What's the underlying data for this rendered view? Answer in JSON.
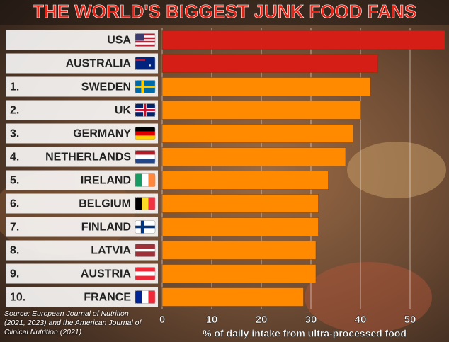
{
  "chart_data": {
    "type": "barh",
    "title": "THE WORLD'S BIGGEST JUNK FOOD FANS",
    "ranks": [
      null,
      null,
      "1.",
      "2.",
      "3.",
      "4.",
      "5.",
      "6.",
      "7.",
      "8.",
      "9.",
      "10."
    ],
    "categories": [
      "USA",
      "AUSTRALIA",
      "SWEDEN",
      "UK",
      "GERMANY",
      "NETHERLANDS",
      "IRELAND",
      "BELGIUM",
      "FINLAND",
      "LATVIA",
      "AUSTRIA",
      "FRANCE"
    ],
    "values": [
      57,
      43.5,
      42,
      40,
      38.5,
      37,
      33.5,
      31.5,
      31.5,
      31,
      31,
      28.5
    ],
    "colors": [
      "#d41e16",
      "#d41e16",
      "#ff8a00",
      "#ff8a00",
      "#ff8a00",
      "#ff8a00",
      "#ff8a00",
      "#ff8a00",
      "#ff8a00",
      "#ff8a00",
      "#ff8a00",
      "#ff8a00"
    ],
    "xlim": [
      0,
      57
    ],
    "xticks": [
      0,
      10,
      20,
      30,
      40,
      50
    ],
    "grid": true,
    "xlabel": "% of daily intake from ultra-processed food",
    "source": "Source: European Journal of Nutrition (2021, 2023) and the American Journal of Clinical Nutrition (2021)"
  }
}
